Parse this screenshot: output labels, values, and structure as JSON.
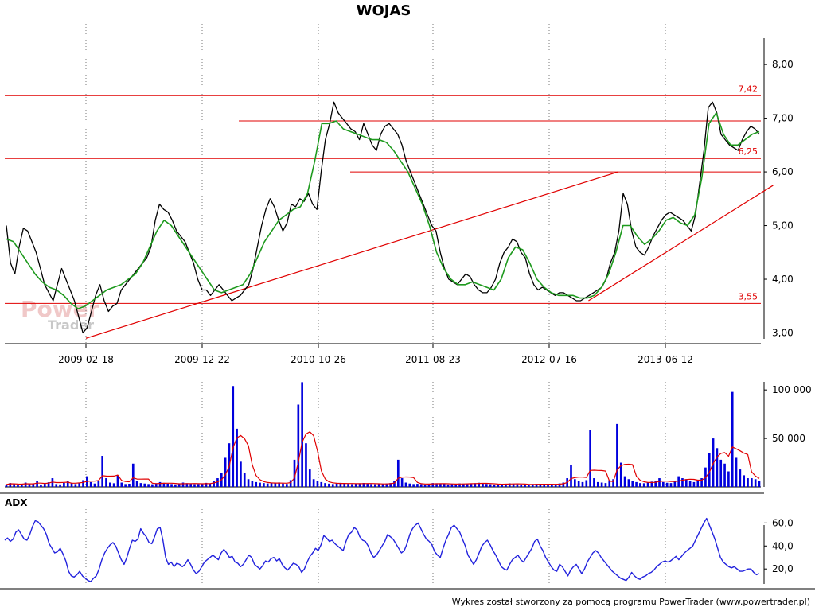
{
  "title": "WOJAS",
  "footer": "Wykres został stworzony za pomocą programu PowerTrader (www.powertrader.pl)",
  "watermark": {
    "word1": "Power",
    "word2": "Trader"
  },
  "colors": {
    "price_line": "#000000",
    "price_avg": "#1e9a1e",
    "level_line": "#e00000",
    "volume": "#0000dd",
    "volume_avg": "#e00000",
    "adx": "#2222dd",
    "grid": "#777777"
  },
  "chart_data": [
    {
      "type": "line",
      "name": "price",
      "title": "WOJAS",
      "x_labels": [
        "2009-02-18",
        "2009-12-22",
        "2010-10-26",
        "2011-08-23",
        "2012-07-16",
        "2013-06-12"
      ],
      "y_ticks": [
        "3,00",
        "4,00",
        "5,00",
        "6,00",
        "7,00",
        "8,00"
      ],
      "ylim": [
        2.8,
        8.55
      ],
      "grid": "vertical dotted",
      "series": [
        {
          "values": [
            5.0,
            4.3,
            4.1,
            4.6,
            4.95,
            4.9,
            4.7,
            4.5,
            4.2,
            3.9,
            3.75,
            3.6,
            3.9,
            4.2,
            4.0,
            3.8,
            3.6,
            3.3,
            3.0,
            3.1,
            3.4,
            3.7,
            3.9,
            3.6,
            3.4,
            3.5,
            3.55,
            3.8,
            3.9,
            4.0,
            4.1,
            4.2,
            4.3,
            4.4,
            4.6,
            5.1,
            5.4,
            5.3,
            5.25,
            5.1,
            4.9,
            4.8,
            4.7,
            4.5,
            4.3,
            4.0,
            3.8,
            3.8,
            3.7,
            3.8,
            3.9,
            3.8,
            3.7,
            3.6,
            3.65,
            3.7,
            3.8,
            3.9,
            4.2,
            4.6,
            5.0,
            5.3,
            5.5,
            5.35,
            5.1,
            4.9,
            5.05,
            5.4,
            5.35,
            5.5,
            5.45,
            5.6,
            5.4,
            5.3,
            6.0,
            6.6,
            6.9,
            7.3,
            7.1,
            7.0,
            6.9,
            6.8,
            6.75,
            6.6,
            6.9,
            6.7,
            6.5,
            6.4,
            6.7,
            6.85,
            6.9,
            6.8,
            6.7,
            6.5,
            6.2,
            6.0,
            5.8,
            5.6,
            5.4,
            5.2,
            5.0,
            4.9,
            4.5,
            4.2,
            4.0,
            3.95,
            3.9,
            4.0,
            4.1,
            4.05,
            3.9,
            3.8,
            3.75,
            3.75,
            3.85,
            4.0,
            4.3,
            4.5,
            4.6,
            4.75,
            4.7,
            4.5,
            4.4,
            4.1,
            3.9,
            3.8,
            3.85,
            3.8,
            3.75,
            3.7,
            3.75,
            3.75,
            3.7,
            3.65,
            3.6,
            3.6,
            3.65,
            3.7,
            3.75,
            3.8,
            3.85,
            4.0,
            4.3,
            4.5,
            4.9,
            5.6,
            5.4,
            4.9,
            4.6,
            4.5,
            4.45,
            4.6,
            4.8,
            4.95,
            5.1,
            5.2,
            5.25,
            5.2,
            5.15,
            5.1,
            5.0,
            4.9,
            5.2,
            5.8,
            6.4,
            7.2,
            7.3,
            7.1,
            6.7,
            6.6,
            6.5,
            6.45,
            6.4,
            6.6,
            6.75,
            6.85,
            6.8,
            6.7
          ]
        },
        {
          "values": [
            4.75,
            4.7,
            4.5,
            4.3,
            4.1,
            3.95,
            3.85,
            3.8,
            3.7,
            3.55,
            3.45,
            3.5,
            3.6,
            3.7,
            3.8,
            3.85,
            3.9,
            4.0,
            4.1,
            4.3,
            4.6,
            4.9,
            5.1,
            5.0,
            4.8,
            4.6,
            4.4,
            4.2,
            4.0,
            3.8,
            3.75,
            3.8,
            3.85,
            3.9,
            4.1,
            4.4,
            4.7,
            4.9,
            5.1,
            5.2,
            5.3,
            5.35,
            5.6,
            6.2,
            6.9,
            6.9,
            6.95,
            6.8,
            6.75,
            6.7,
            6.65,
            6.6,
            6.6,
            6.55,
            6.4,
            6.2,
            6.0,
            5.7,
            5.4,
            5.0,
            4.5,
            4.2,
            4.0,
            3.9,
            3.9,
            3.95,
            3.9,
            3.85,
            3.8,
            4.0,
            4.4,
            4.6,
            4.55,
            4.3,
            4.0,
            3.85,
            3.75,
            3.7,
            3.7,
            3.7,
            3.65,
            3.65,
            3.7,
            3.85,
            4.1,
            4.5,
            5.0,
            5.0,
            4.8,
            4.65,
            4.75,
            4.9,
            5.1,
            5.15,
            5.05,
            5.0,
            5.2,
            5.9,
            6.9,
            7.1,
            6.7,
            6.5,
            6.5,
            6.6,
            6.7,
            6.75
          ]
        }
      ],
      "levels": [
        {
          "value": 7.42,
          "label": "7,42",
          "range": "full"
        },
        {
          "value": 6.95,
          "label": "",
          "range": "2010-10-26 onward"
        },
        {
          "value": 6.25,
          "label": "6,25",
          "range": "full"
        },
        {
          "value": 6.0,
          "label": "",
          "range": "2011-01 onward"
        },
        {
          "value": 3.55,
          "label": "3,55",
          "range": "full"
        }
      ],
      "trendlines": [
        {
          "from": [
            "2009-02-18",
            2.9
          ],
          "to": [
            "2013-01-28",
            6.0
          ]
        },
        {
          "from": [
            "2012-11-05",
            3.6
          ],
          "to": [
            "2014-04-15",
            5.75
          ]
        }
      ]
    },
    {
      "type": "bar",
      "name": "volume",
      "y_ticks": [
        "50 000",
        "100 000"
      ],
      "ylim": [
        0,
        110000
      ],
      "values": [
        2500,
        4000,
        3000,
        2200,
        2800,
        4500,
        3500,
        3000,
        6000,
        2500,
        3200,
        4800,
        9000,
        3000,
        2600,
        4200,
        5800,
        3800,
        3000,
        4000,
        7000,
        11000,
        5000,
        3500,
        6500,
        32000,
        9000,
        4500,
        3800,
        12000,
        4500,
        3000,
        3300,
        24000,
        6000,
        4000,
        3500,
        3000,
        2800,
        3800,
        5000,
        4200,
        3400,
        3000,
        2600,
        3100,
        4500,
        3900,
        3200,
        2800,
        3000,
        3500,
        4200,
        3700,
        6000,
        9000,
        14000,
        30000,
        45000,
        104000,
        60000,
        26000,
        14000,
        8000,
        6000,
        5000,
        4400,
        4000,
        3600,
        3800,
        4200,
        4600,
        3500,
        3100,
        7000,
        28000,
        85000,
        108000,
        45000,
        18000,
        8000,
        6000,
        5000,
        4000,
        3400,
        3000,
        3600,
        4200,
        3800,
        3200,
        2900,
        3300,
        3800,
        4100,
        3600,
        3000,
        2800,
        3000,
        3300,
        3600,
        4000,
        6000,
        28000,
        9000,
        4500,
        3500,
        3000,
        3200,
        2800,
        2600,
        3300,
        4000,
        3800,
        3200,
        2900,
        2600,
        3000,
        3200,
        3600,
        3300,
        3100,
        3500,
        3900,
        4300,
        3700,
        3100,
        2800,
        2500,
        2700,
        3000,
        3300,
        3700,
        3100,
        2800,
        2600,
        2400,
        2500,
        3000,
        3200,
        2800,
        2600,
        2500,
        2700,
        3000,
        3600,
        4500,
        9000,
        23000,
        8000,
        6000,
        5000,
        7000,
        59000,
        9000,
        5000,
        4500,
        4000,
        7000,
        8000,
        65000,
        25000,
        11000,
        8000,
        6000,
        5000,
        4000,
        3800,
        4500,
        5500,
        6000,
        9000,
        5000,
        4300,
        4000,
        6000,
        11000,
        9000,
        8000,
        6000,
        5000,
        7000,
        9000,
        20000,
        35000,
        50000,
        40000,
        28000,
        24000,
        16000,
        98000,
        30000,
        18000,
        12000,
        9000,
        9000,
        8000,
        6000
      ]
    },
    {
      "type": "line",
      "name": "ADX",
      "title": "ADX",
      "y_ticks": [
        "20,0",
        "40,0",
        "60,0"
      ],
      "ylim": [
        7,
        72
      ],
      "values": [
        45,
        47,
        44,
        46,
        52,
        54,
        50,
        46,
        45,
        50,
        57,
        62,
        61,
        58,
        55,
        50,
        42,
        38,
        34,
        35,
        38,
        33,
        27,
        18,
        14,
        13,
        15,
        18,
        14,
        12,
        10,
        9,
        12,
        14,
        20,
        28,
        34,
        38,
        41,
        43,
        40,
        34,
        28,
        24,
        30,
        38,
        45,
        44,
        46,
        55,
        51,
        48,
        43,
        42,
        48,
        55,
        56,
        45,
        30,
        24,
        26,
        22,
        25,
        24,
        22,
        24,
        28,
        24,
        19,
        16,
        18,
        22,
        26,
        28,
        30,
        32,
        30,
        28,
        34,
        37,
        34,
        30,
        31,
        26,
        25,
        22,
        24,
        28,
        32,
        30,
        24,
        22,
        20,
        23,
        27,
        26,
        29,
        30,
        27,
        29,
        24,
        21,
        19,
        22,
        25,
        24,
        22,
        17,
        20,
        26,
        31,
        34,
        38,
        36,
        41,
        49,
        47,
        44,
        45,
        42,
        40,
        38,
        36,
        44,
        50,
        52,
        56,
        54,
        48,
        45,
        44,
        40,
        34,
        30,
        32,
        36,
        40,
        44,
        50,
        48,
        46,
        42,
        38,
        34,
        36,
        42,
        50,
        55,
        58,
        60,
        55,
        50,
        46,
        44,
        41,
        35,
        32,
        30,
        38,
        45,
        50,
        56,
        58,
        55,
        52,
        46,
        40,
        32,
        28,
        24,
        28,
        34,
        40,
        43,
        45,
        41,
        36,
        32,
        27,
        22,
        20,
        19,
        24,
        28,
        30,
        32,
        28,
        26,
        30,
        34,
        38,
        44,
        46,
        40,
        36,
        30,
        26,
        22,
        19,
        18,
        24,
        22,
        18,
        14,
        19,
        22,
        24,
        20,
        16,
        20,
        26,
        30,
        34,
        36,
        34,
        30,
        27,
        24,
        21,
        18,
        16,
        14,
        12,
        11,
        10,
        13,
        17,
        14,
        12,
        11,
        13,
        14,
        16,
        17,
        19,
        22,
        24,
        26,
        27,
        26,
        27,
        29,
        31,
        28,
        31,
        34,
        36,
        38,
        40,
        45,
        50,
        55,
        60,
        64,
        58,
        52,
        46,
        38,
        30,
        26,
        24,
        22,
        21,
        22,
        20,
        18,
        18,
        19,
        20,
        20,
        17,
        15,
        16
      ]
    }
  ]
}
